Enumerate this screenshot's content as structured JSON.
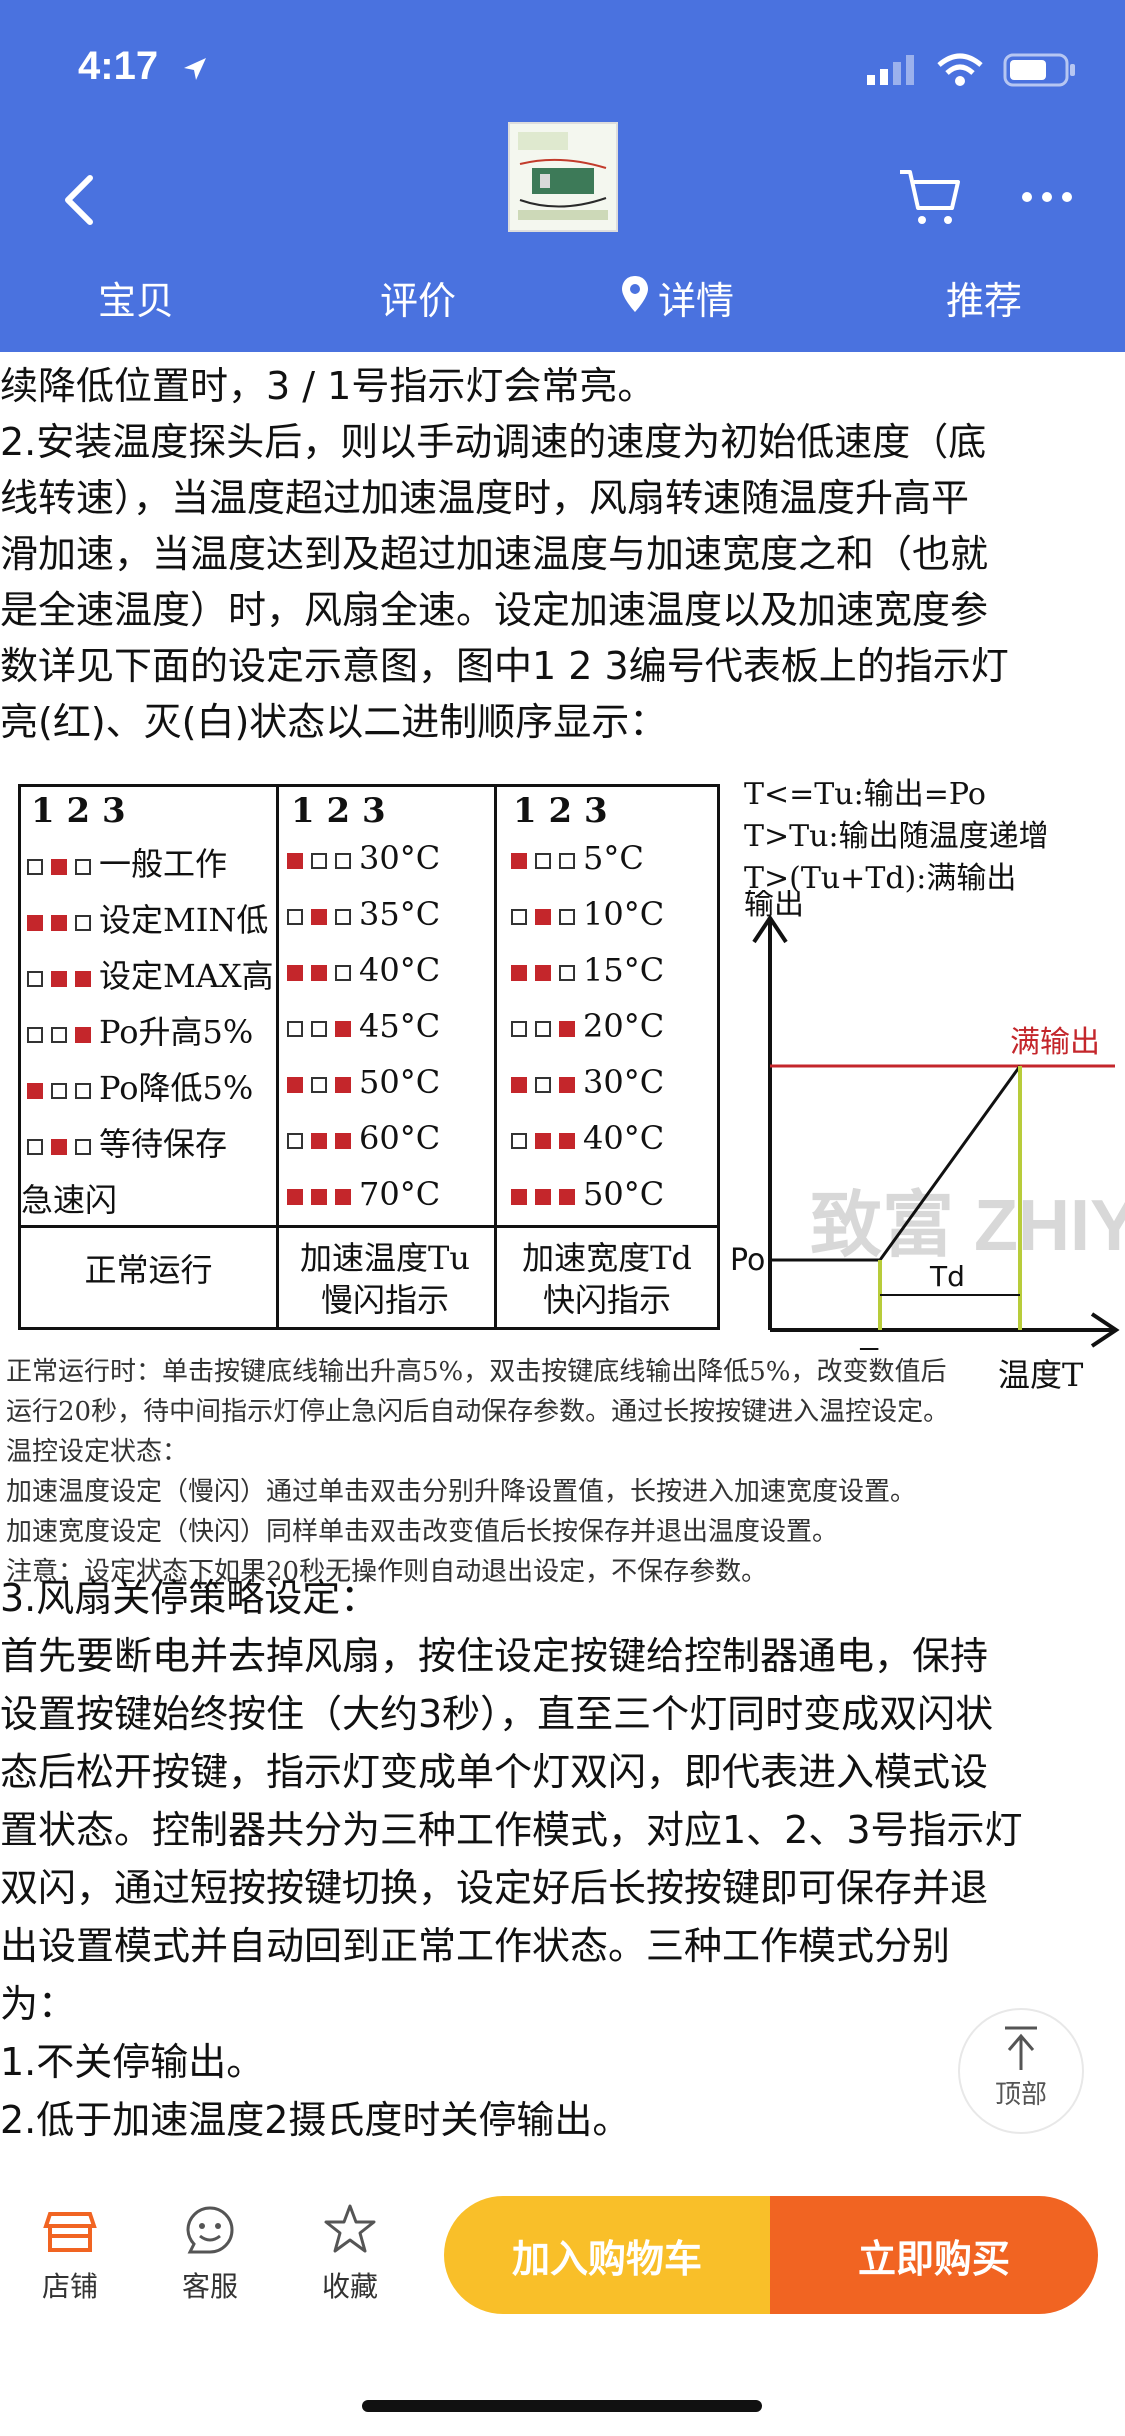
{
  "status_bar": {
    "time": "4:17"
  },
  "header": {
    "tabs": [
      "宝贝",
      "评价",
      "详情",
      "推荐"
    ]
  },
  "content": {
    "paragraphs_top": [
      "续降低位置时，3 / 1号指示灯会常亮。",
      "2.安装温度探头后，则以手动调速的速度为初始低速度（底",
      "线转速），当温度超过加速温度时，风扇转速随温度升高平",
      "滑加速，当温度达到及超过加速温度与加速宽度之和（也就",
      "是全速温度）时，风扇全速。设定加速温度以及加速宽度参",
      "数详见下面的设定示意图，图中1 2 3编号代表板上的指示灯",
      "亮(红)、灭(白)状态以二进制顺序显示："
    ],
    "figure": {
      "col_headers": [
        "1 2 3",
        "1 2 3",
        "1 2 3"
      ],
      "col1_rows": [
        {
          "pattern": [
            0,
            1,
            0
          ],
          "label": "一般工作"
        },
        {
          "pattern": [
            1,
            1,
            0
          ],
          "label": "设定MIN低"
        },
        {
          "pattern": [
            0,
            1,
            1
          ],
          "label": "设定MAX高"
        },
        {
          "pattern": [
            0,
            0,
            1
          ],
          "label": "Po升高5%"
        },
        {
          "pattern": [
            1,
            0,
            0
          ],
          "label": "Po降低5%"
        },
        {
          "pattern": [
            0,
            1,
            0
          ],
          "label": "等待保存"
        }
      ],
      "col1_extra": "急速闪",
      "col2_rows": [
        {
          "pattern": [
            1,
            0,
            0
          ],
          "label": "30°C"
        },
        {
          "pattern": [
            0,
            1,
            0
          ],
          "label": "35°C"
        },
        {
          "pattern": [
            1,
            1,
            0
          ],
          "label": "40°C"
        },
        {
          "pattern": [
            0,
            0,
            1
          ],
          "label": "45°C"
        },
        {
          "pattern": [
            1,
            0,
            1
          ],
          "label": "50°C"
        },
        {
          "pattern": [
            0,
            1,
            1
          ],
          "label": "60°C"
        },
        {
          "pattern": [
            1,
            1,
            1
          ],
          "label": "70°C"
        }
      ],
      "col3_rows": [
        {
          "pattern": [
            1,
            0,
            0
          ],
          "label": "5°C"
        },
        {
          "pattern": [
            0,
            1,
            0
          ],
          "label": "10°C"
        },
        {
          "pattern": [
            1,
            1,
            0
          ],
          "label": "15°C"
        },
        {
          "pattern": [
            0,
            0,
            1
          ],
          "label": "20°C"
        },
        {
          "pattern": [
            1,
            0,
            1
          ],
          "label": "30°C"
        },
        {
          "pattern": [
            0,
            1,
            1
          ],
          "label": "40°C"
        },
        {
          "pattern": [
            1,
            1,
            1
          ],
          "label": "50°C"
        }
      ],
      "footers": [
        "正常运行",
        "加速温度Tu\n慢闪指示",
        "加速宽度Td\n快闪指示"
      ],
      "rules": [
        "T<=Tu:输出=Po",
        "T>Tu:输出随温度递增",
        "T>(Tu+Td):满输出"
      ],
      "graph": {
        "y_label": "输出",
        "full_label": "满输出",
        "po_label": "Po",
        "td_label": "Td",
        "tu_label": "Tu",
        "x_label": "温度T",
        "watermark": "致富 ZHIYU"
      },
      "notes": [
        "正常运行时：单击按键底线输出升高5%，双击按键底线输出降低5%，改变数值后",
        "运行20秒，待中间指示灯停止急闪后自动保存参数。通过长按按键进入温控设定。",
        "温控设定状态：",
        "加速温度设定（慢闪）通过单击双击分别升降设置值，长按进入加速宽度设置。",
        "加速宽度设定（快闪）同样单击双击改变值后长按保存并退出温度设置。",
        "注意：设定状态下如果20秒无操作则自动退出设定，不保存参数。"
      ]
    },
    "paragraphs_bottom": [
      "3.风扇关停策略设定：",
      "首先要断电并去掉风扇，按住设定按键给控制器通电，保持",
      "设置按键始终按住（大约3秒），直至三个灯同时变成双闪状",
      "态后松开按键，指示灯变成单个灯双闪，即代表进入模式设",
      "置状态。控制器共分为三种工作模式，对应1、2、3号指示灯",
      "双闪，通过短按按键切换，设定好后长按按键即可保存并退",
      "出设置模式并自动回到正常工作状态。三种工作模式分别",
      "为：",
      "1.不关停输出。",
      "2.低于加速温度2摄氏度时关停输出。"
    ]
  },
  "top_button": {
    "label": "顶部"
  },
  "bottom_bar": {
    "store": "店铺",
    "service": "客服",
    "favorite": "收藏",
    "add_to_cart": "加入购物车",
    "buy_now": "立即购买"
  },
  "colors": {
    "header_blue": "#4a72df",
    "cart_yellow": "#f9bf29",
    "buy_orange": "#f16422",
    "led_red": "#c4262b",
    "graph_red": "#c4262b",
    "graph_green": "#b8cc3a"
  }
}
